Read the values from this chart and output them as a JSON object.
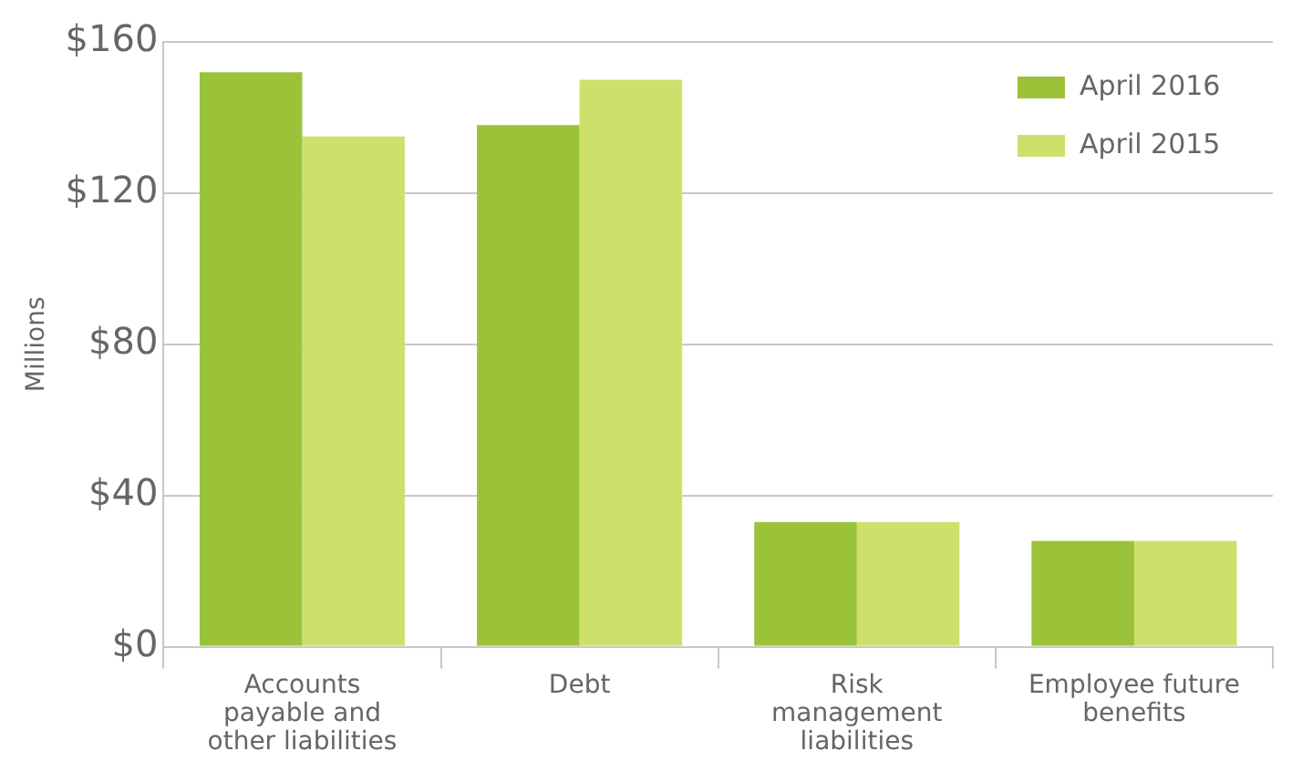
{
  "chart_data": {
    "type": "bar",
    "ylabel": "Millions",
    "categories": [
      [
        "Accounts",
        "payable and",
        "other liabilities"
      ],
      [
        "Debt"
      ],
      [
        "Risk",
        "management",
        "liabilities"
      ],
      [
        "Employee future",
        "benefits"
      ]
    ],
    "series": [
      {
        "name": "April 2016",
        "color": "#9ac33a",
        "values": [
          152,
          138,
          33,
          28
        ]
      },
      {
        "name": "April 2015",
        "color": "#cfdf6c",
        "values": [
          135,
          150,
          33,
          28
        ]
      }
    ],
    "ylim": [
      0,
      160
    ],
    "yticks": [
      {
        "value": 0,
        "label": "$0"
      },
      {
        "value": 40,
        "label": "$40"
      },
      {
        "value": 80,
        "label": "$80"
      },
      {
        "value": 120,
        "label": "$120"
      },
      {
        "value": 160,
        "label": "$160"
      }
    ],
    "grid": "y",
    "legend": "top right"
  }
}
